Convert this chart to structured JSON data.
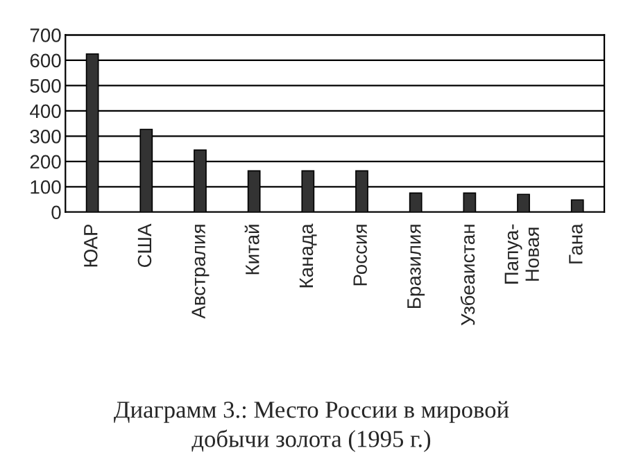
{
  "chart_data": {
    "type": "bar",
    "title": "Диаграмм 3.: Место России в мировой\nдобычи золота (1995 г.)",
    "categories": [
      "ЮАР",
      "США",
      "Австралия",
      "Китай",
      "Канада",
      "Россия",
      "Бразилия",
      "Узбеаистан",
      "Папуа-\nНовая",
      "Гана"
    ],
    "values": [
      625,
      327,
      245,
      163,
      163,
      163,
      75,
      75,
      70,
      48
    ],
    "color": "#333333",
    "ylim": [
      0,
      700
    ],
    "yticks": [
      0,
      100,
      200,
      300,
      400,
      500,
      600,
      700
    ],
    "grid": "y",
    "legend": false
  }
}
